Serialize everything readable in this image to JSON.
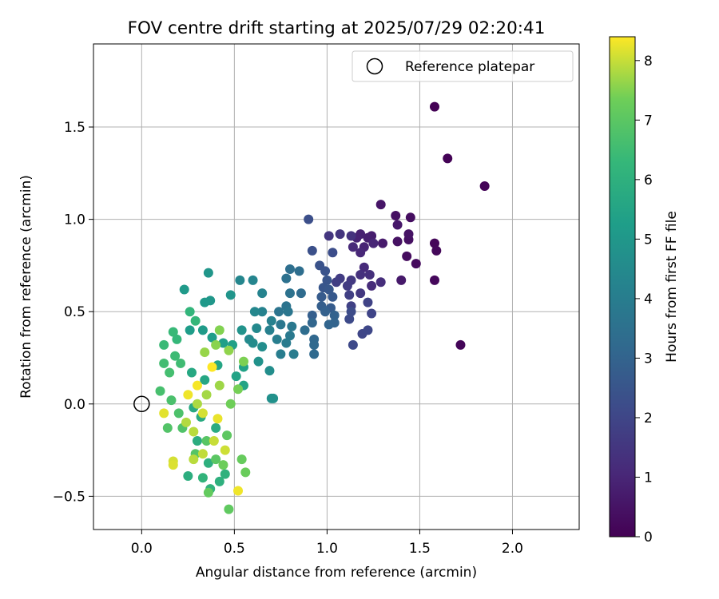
{
  "chart_data": {
    "type": "scatter",
    "title": "FOV centre drift starting at 2025/07/29 02:20:41",
    "xlabel": "Angular distance from reference (arcmin)",
    "ylabel": "Rotation from reference (arcmin)",
    "xlim": [
      -0.26,
      2.36
    ],
    "ylim": [
      -0.68,
      1.95
    ],
    "xticks": [
      0.0,
      0.5,
      1.0,
      1.5,
      2.0
    ],
    "xtick_labels": [
      "0.0",
      "0.5",
      "1.0",
      "1.5",
      "2.0"
    ],
    "yticks": [
      -0.5,
      0.0,
      0.5,
      1.0,
      1.5
    ],
    "ytick_labels": [
      "−0.5",
      "0.0",
      "0.5",
      "1.0",
      "1.5"
    ],
    "grid": true,
    "legend": {
      "placement": "upper-right",
      "entries": [
        "Reference platepar"
      ]
    },
    "reference_point": {
      "x": 0.0,
      "y": 0.0
    },
    "colorbar": {
      "label": "Hours from first FF file",
      "range": [
        0,
        8.4
      ],
      "ticks": [
        0,
        1,
        2,
        3,
        4,
        5,
        6,
        7,
        8
      ],
      "tick_labels": [
        "0",
        "1",
        "2",
        "3",
        "4",
        "5",
        "6",
        "7",
        "8"
      ],
      "colormap": "viridis"
    },
    "points": [
      [
        1.58,
        1.61,
        0.02
      ],
      [
        1.65,
        1.33,
        0.05
      ],
      [
        1.85,
        1.18,
        0.08
      ],
      [
        1.72,
        0.32,
        0.12
      ],
      [
        1.58,
        0.87,
        0.15
      ],
      [
        1.59,
        0.83,
        0.18
      ],
      [
        1.58,
        0.67,
        0.2
      ],
      [
        1.48,
        0.76,
        0.25
      ],
      [
        1.43,
        0.8,
        0.3
      ],
      [
        1.45,
        1.01,
        0.35
      ],
      [
        1.37,
        1.02,
        0.38
      ],
      [
        1.44,
        0.89,
        0.4
      ],
      [
        1.38,
        0.88,
        0.45
      ],
      [
        1.44,
        0.92,
        0.5
      ],
      [
        1.29,
        1.08,
        0.55
      ],
      [
        1.38,
        0.97,
        0.6
      ],
      [
        1.4,
        0.67,
        0.65
      ],
      [
        1.3,
        0.87,
        0.7
      ],
      [
        1.24,
        0.91,
        0.75
      ],
      [
        1.22,
        0.9,
        0.8
      ],
      [
        1.18,
        0.92,
        0.85
      ],
      [
        1.16,
        0.9,
        0.9
      ],
      [
        1.2,
        0.85,
        0.95
      ],
      [
        1.25,
        0.87,
        1.0
      ],
      [
        1.18,
        0.82,
        1.05
      ],
      [
        1.14,
        0.85,
        1.1
      ],
      [
        1.2,
        0.74,
        1.15
      ],
      [
        1.24,
        0.64,
        1.2
      ],
      [
        1.29,
        0.66,
        1.25
      ],
      [
        1.23,
        0.7,
        1.3
      ],
      [
        1.18,
        0.7,
        1.35
      ],
      [
        1.13,
        0.91,
        1.4
      ],
      [
        1.07,
        0.92,
        1.45
      ],
      [
        1.01,
        0.91,
        1.5
      ],
      [
        1.18,
        0.6,
        1.55
      ],
      [
        1.13,
        0.67,
        1.6
      ],
      [
        1.11,
        0.64,
        1.65
      ],
      [
        1.07,
        0.68,
        1.7
      ],
      [
        1.05,
        0.66,
        1.75
      ],
      [
        1.12,
        0.59,
        1.8
      ],
      [
        1.13,
        0.53,
        1.85
      ],
      [
        1.22,
        0.55,
        1.9
      ],
      [
        1.24,
        0.49,
        1.95
      ],
      [
        1.19,
        0.38,
        2.0
      ],
      [
        1.22,
        0.4,
        2.05
      ],
      [
        1.14,
        0.32,
        2.1
      ],
      [
        1.12,
        0.46,
        2.15
      ],
      [
        1.13,
        0.5,
        2.2
      ],
      [
        1.03,
        0.82,
        2.25
      ],
      [
        0.9,
        1.0,
        2.3
      ],
      [
        0.92,
        0.83,
        2.35
      ],
      [
        0.96,
        0.75,
        2.4
      ],
      [
        0.99,
        0.72,
        2.45
      ],
      [
        1.0,
        0.67,
        2.5
      ],
      [
        0.98,
        0.63,
        2.55
      ],
      [
        1.01,
        0.62,
        2.6
      ],
      [
        1.03,
        0.58,
        2.65
      ],
      [
        0.97,
        0.58,
        2.7
      ],
      [
        1.02,
        0.52,
        2.75
      ],
      [
        0.97,
        0.53,
        2.8
      ],
      [
        0.92,
        0.48,
        2.85
      ],
      [
        0.99,
        0.5,
        2.9
      ],
      [
        1.04,
        0.48,
        2.95
      ],
      [
        1.04,
        0.44,
        3.0
      ],
      [
        1.01,
        0.43,
        3.05
      ],
      [
        0.92,
        0.44,
        3.1
      ],
      [
        0.93,
        0.35,
        3.15
      ],
      [
        0.93,
        0.32,
        3.2
      ],
      [
        0.93,
        0.27,
        3.25
      ],
      [
        0.86,
        0.6,
        3.3
      ],
      [
        0.88,
        0.4,
        3.35
      ],
      [
        0.85,
        0.72,
        3.4
      ],
      [
        0.8,
        0.73,
        3.45
      ],
      [
        0.78,
        0.68,
        3.5
      ],
      [
        0.8,
        0.6,
        3.55
      ],
      [
        0.78,
        0.53,
        3.6
      ],
      [
        0.74,
        0.5,
        3.65
      ],
      [
        0.79,
        0.5,
        3.7
      ],
      [
        0.75,
        0.43,
        3.75
      ],
      [
        0.81,
        0.42,
        3.8
      ],
      [
        0.8,
        0.37,
        3.85
      ],
      [
        0.78,
        0.33,
        3.9
      ],
      [
        0.82,
        0.27,
        3.95
      ],
      [
        0.75,
        0.27,
        4.0
      ],
      [
        0.73,
        0.35,
        4.05
      ],
      [
        0.69,
        0.4,
        4.1
      ],
      [
        0.7,
        0.45,
        4.15
      ],
      [
        0.65,
        0.5,
        4.2
      ],
      [
        0.65,
        0.6,
        4.25
      ],
      [
        0.6,
        0.67,
        4.3
      ],
      [
        0.53,
        0.67,
        4.35
      ],
      [
        0.61,
        0.5,
        4.4
      ],
      [
        0.62,
        0.41,
        4.45
      ],
      [
        0.58,
        0.35,
        4.5
      ],
      [
        0.6,
        0.33,
        4.55
      ],
      [
        0.65,
        0.31,
        4.6
      ],
      [
        0.69,
        0.18,
        4.65
      ],
      [
        0.7,
        0.03,
        4.7
      ],
      [
        0.71,
        0.03,
        4.75
      ],
      [
        0.63,
        0.23,
        4.8
      ],
      [
        0.54,
        0.4,
        4.85
      ],
      [
        0.48,
        0.59,
        4.9
      ],
      [
        0.36,
        0.71,
        4.95
      ],
      [
        0.37,
        0.56,
        5.0
      ],
      [
        0.34,
        0.55,
        5.05
      ],
      [
        0.23,
        0.62,
        5.1
      ],
      [
        0.33,
        0.4,
        5.15
      ],
      [
        0.26,
        0.4,
        5.2
      ],
      [
        0.38,
        0.36,
        5.25
      ],
      [
        0.44,
        0.33,
        5.3
      ],
      [
        0.49,
        0.32,
        5.35
      ],
      [
        0.55,
        0.2,
        5.4
      ],
      [
        0.51,
        0.15,
        5.45
      ],
      [
        0.55,
        0.1,
        5.5
      ],
      [
        0.41,
        0.21,
        5.55
      ],
      [
        0.34,
        0.13,
        5.6
      ],
      [
        0.27,
        0.17,
        5.65
      ],
      [
        0.28,
        -0.02,
        5.7
      ],
      [
        0.32,
        -0.07,
        5.75
      ],
      [
        0.4,
        -0.13,
        5.8
      ],
      [
        0.3,
        -0.2,
        5.85
      ],
      [
        0.25,
        -0.39,
        5.9
      ],
      [
        0.36,
        -0.32,
        5.95
      ],
      [
        0.42,
        -0.42,
        6.0
      ],
      [
        0.45,
        -0.38,
        6.05
      ],
      [
        0.37,
        -0.46,
        6.1
      ],
      [
        0.33,
        -0.4,
        6.15
      ],
      [
        0.26,
        0.5,
        6.2
      ],
      [
        0.29,
        0.45,
        6.25
      ],
      [
        0.19,
        0.35,
        6.3
      ],
      [
        0.17,
        0.39,
        6.35
      ],
      [
        0.12,
        0.32,
        6.4
      ],
      [
        0.18,
        0.26,
        6.45
      ],
      [
        0.21,
        0.22,
        6.5
      ],
      [
        0.12,
        0.22,
        6.55
      ],
      [
        0.15,
        0.17,
        6.6
      ],
      [
        0.1,
        0.07,
        6.65
      ],
      [
        0.16,
        0.02,
        6.7
      ],
      [
        0.2,
        -0.05,
        6.75
      ],
      [
        0.22,
        -0.13,
        6.8
      ],
      [
        0.14,
        -0.13,
        6.85
      ],
      [
        0.29,
        -0.27,
        6.9
      ],
      [
        0.35,
        -0.2,
        6.95
      ],
      [
        0.4,
        -0.3,
        7.0
      ],
      [
        0.46,
        -0.17,
        7.05
      ],
      [
        0.47,
        -0.57,
        7.1
      ],
      [
        0.36,
        -0.48,
        7.15
      ],
      [
        0.54,
        -0.3,
        7.2
      ],
      [
        0.56,
        -0.37,
        7.25
      ],
      [
        0.44,
        -0.33,
        7.3
      ],
      [
        0.48,
        0.0,
        7.35
      ],
      [
        0.52,
        0.08,
        7.4
      ],
      [
        0.55,
        0.23,
        7.45
      ],
      [
        0.42,
        0.4,
        7.5
      ],
      [
        0.4,
        0.32,
        7.55
      ],
      [
        0.47,
        0.29,
        7.6
      ],
      [
        0.34,
        0.28,
        7.65
      ],
      [
        0.42,
        0.1,
        7.7
      ],
      [
        0.35,
        0.05,
        7.75
      ],
      [
        0.3,
        0.0,
        7.8
      ],
      [
        0.24,
        -0.1,
        7.85
      ],
      [
        0.28,
        -0.15,
        7.9
      ],
      [
        0.33,
        -0.27,
        7.95
      ],
      [
        0.39,
        -0.2,
        8.0
      ],
      [
        0.45,
        -0.25,
        8.05
      ],
      [
        0.17,
        -0.31,
        8.1
      ],
      [
        0.17,
        -0.33,
        8.15
      ],
      [
        0.12,
        -0.05,
        8.2
      ],
      [
        0.41,
        -0.08,
        8.25
      ],
      [
        0.52,
        -0.47,
        8.3
      ],
      [
        0.3,
        0.1,
        8.35
      ],
      [
        0.38,
        0.2,
        8.4
      ],
      [
        0.25,
        0.05,
        8.3
      ],
      [
        0.33,
        -0.05,
        8.1
      ],
      [
        0.28,
        -0.3,
        7.9
      ]
    ]
  }
}
